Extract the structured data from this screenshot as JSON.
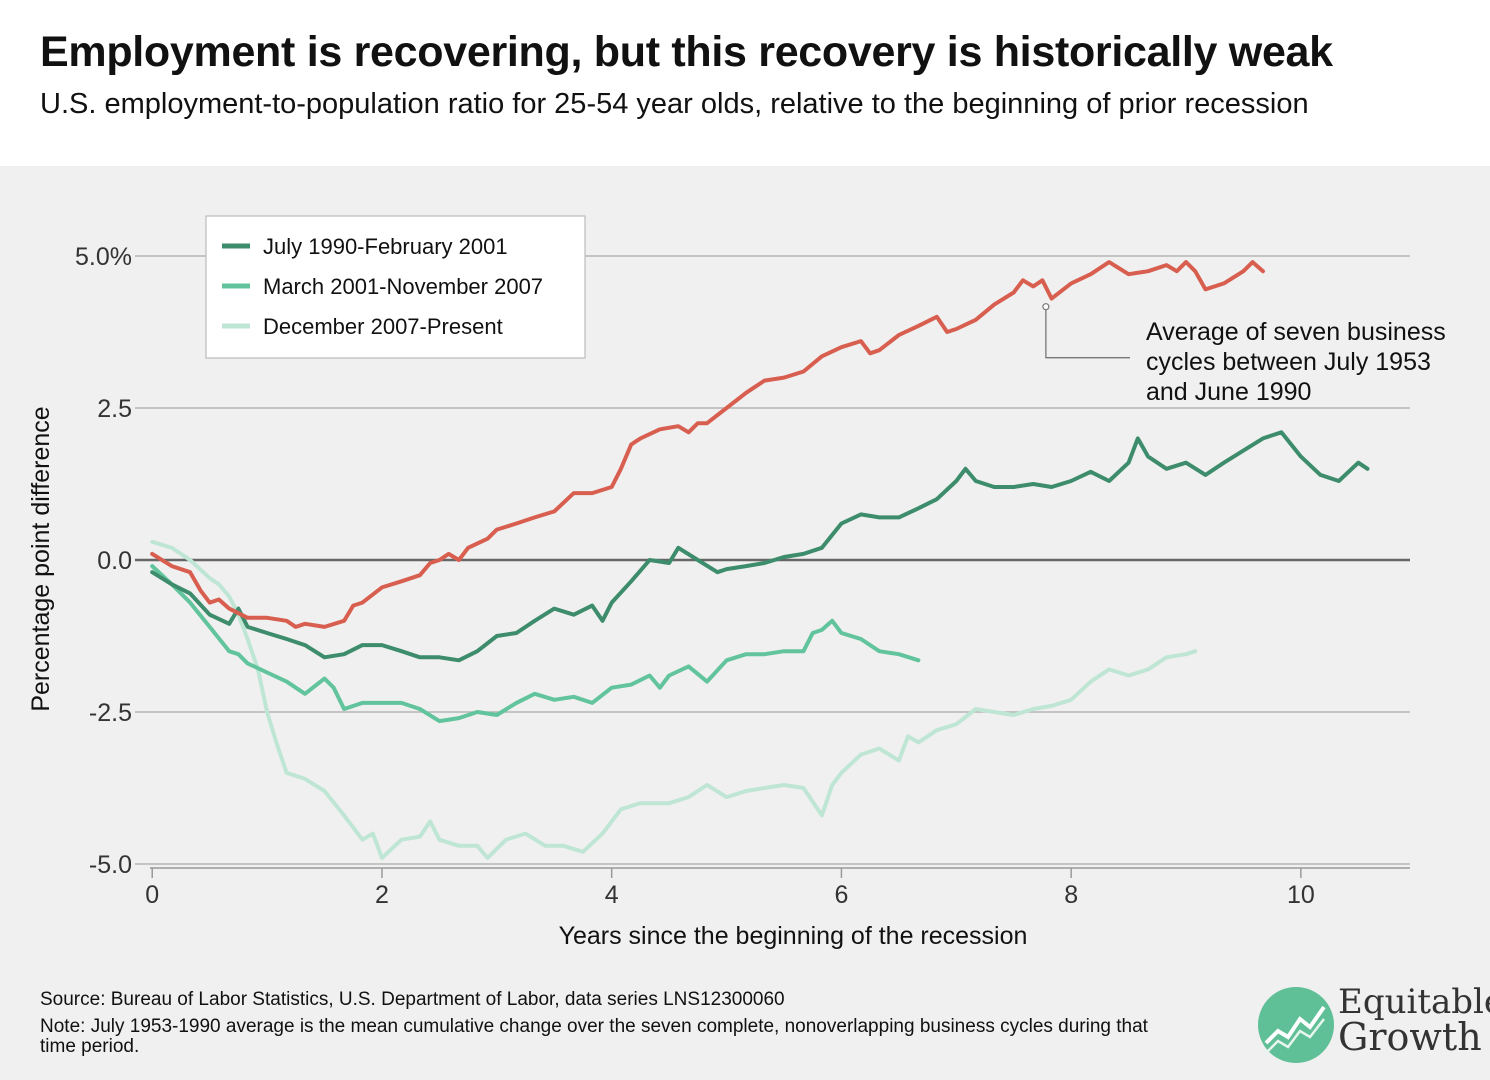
{
  "header": {
    "title": "Employment is recovering, but this recovery is historically weak",
    "subtitle": "U.S. employment-to-population ratio for 25-54 year olds, relative to the beginning of prior recession"
  },
  "footer": {
    "source": "Source: Bureau of Labor Statistics, U.S. Department of Labor, data series LNS12300060",
    "note": "Note: July 1953-1990 average is the mean cumulative change over the seven complete, nonoverlapping business cycles during that time period."
  },
  "logo": {
    "line1": "Equitable",
    "line2": "Growth",
    "icon": "growth-chart-icon"
  },
  "chart_data": {
    "type": "line",
    "title": "Employment is recovering, but this recovery is historically weak",
    "subtitle": "U.S. employment-to-population ratio for 25-54 year olds, relative to the beginning of prior recession",
    "xlabel": "Years since the beginning of the recession",
    "ylabel": "Percentage point difference",
    "xlim": [
      -0.15,
      10.95
    ],
    "ylim": [
      -5.0,
      5.0
    ],
    "xticks": [
      0,
      2,
      4,
      6,
      8,
      10
    ],
    "xtick_labels": [
      "0",
      "2",
      "4",
      "6",
      "8",
      "10"
    ],
    "yticks": [
      5,
      2.5,
      0,
      -2.5,
      -5
    ],
    "ytick_labels": [
      "5.0%",
      "2.5",
      "0.0",
      "-2.5",
      "-5.0"
    ],
    "grid": true,
    "legend_position": "top-left",
    "annotation": {
      "text": [
        "Average of seven business",
        "cycles between July 1953",
        "and June 1990"
      ],
      "point": [
        7.78,
        4.15
      ]
    },
    "series": [
      {
        "name": "July 1990-February 2001",
        "color": "#3d8c6c",
        "in_legend": true,
        "points": [
          [
            0,
            -0.2
          ],
          [
            0.17,
            -0.4
          ],
          [
            0.33,
            -0.55
          ],
          [
            0.5,
            -0.9
          ],
          [
            0.67,
            -1.05
          ],
          [
            0.75,
            -0.8
          ],
          [
            0.83,
            -1.1
          ],
          [
            1,
            -1.2
          ],
          [
            1.17,
            -1.3
          ],
          [
            1.33,
            -1.4
          ],
          [
            1.5,
            -1.6
          ],
          [
            1.67,
            -1.55
          ],
          [
            1.83,
            -1.4
          ],
          [
            2,
            -1.4
          ],
          [
            2.17,
            -1.5
          ],
          [
            2.33,
            -1.6
          ],
          [
            2.5,
            -1.6
          ],
          [
            2.67,
            -1.65
          ],
          [
            2.83,
            -1.5
          ],
          [
            3,
            -1.25
          ],
          [
            3.17,
            -1.2
          ],
          [
            3.33,
            -1.0
          ],
          [
            3.5,
            -0.8
          ],
          [
            3.67,
            -0.9
          ],
          [
            3.83,
            -0.75
          ],
          [
            3.92,
            -1.0
          ],
          [
            4,
            -0.7
          ],
          [
            4.17,
            -0.35
          ],
          [
            4.33,
            0.0
          ],
          [
            4.5,
            -0.05
          ],
          [
            4.58,
            0.2
          ],
          [
            4.75,
            0.0
          ],
          [
            4.92,
            -0.2
          ],
          [
            5,
            -0.15
          ],
          [
            5.17,
            -0.1
          ],
          [
            5.33,
            -0.05
          ],
          [
            5.5,
            0.05
          ],
          [
            5.67,
            0.1
          ],
          [
            5.83,
            0.2
          ],
          [
            6,
            0.6
          ],
          [
            6.17,
            0.75
          ],
          [
            6.33,
            0.7
          ],
          [
            6.5,
            0.7
          ],
          [
            6.67,
            0.85
          ],
          [
            6.83,
            1.0
          ],
          [
            7,
            1.3
          ],
          [
            7.08,
            1.5
          ],
          [
            7.17,
            1.3
          ],
          [
            7.33,
            1.2
          ],
          [
            7.5,
            1.2
          ],
          [
            7.67,
            1.25
          ],
          [
            7.83,
            1.2
          ],
          [
            8,
            1.3
          ],
          [
            8.17,
            1.45
          ],
          [
            8.33,
            1.3
          ],
          [
            8.5,
            1.6
          ],
          [
            8.58,
            2.0
          ],
          [
            8.67,
            1.7
          ],
          [
            8.83,
            1.5
          ],
          [
            9,
            1.6
          ],
          [
            9.17,
            1.4
          ],
          [
            9.33,
            1.6
          ],
          [
            9.5,
            1.8
          ],
          [
            9.67,
            2.0
          ],
          [
            9.83,
            2.1
          ],
          [
            10,
            1.7
          ],
          [
            10.17,
            1.4
          ],
          [
            10.33,
            1.3
          ],
          [
            10.5,
            1.6
          ],
          [
            10.58,
            1.5
          ]
        ]
      },
      {
        "name": "March 2001-November 2007",
        "color": "#62c49d",
        "in_legend": true,
        "points": [
          [
            0,
            -0.1
          ],
          [
            0.17,
            -0.4
          ],
          [
            0.33,
            -0.7
          ],
          [
            0.5,
            -1.1
          ],
          [
            0.67,
            -1.5
          ],
          [
            0.75,
            -1.55
          ],
          [
            0.83,
            -1.7
          ],
          [
            1,
            -1.85
          ],
          [
            1.17,
            -2.0
          ],
          [
            1.33,
            -2.2
          ],
          [
            1.5,
            -1.95
          ],
          [
            1.58,
            -2.1
          ],
          [
            1.67,
            -2.45
          ],
          [
            1.83,
            -2.35
          ],
          [
            2,
            -2.35
          ],
          [
            2.17,
            -2.35
          ],
          [
            2.33,
            -2.45
          ],
          [
            2.5,
            -2.65
          ],
          [
            2.67,
            -2.6
          ],
          [
            2.83,
            -2.5
          ],
          [
            3,
            -2.55
          ],
          [
            3.17,
            -2.35
          ],
          [
            3.33,
            -2.2
          ],
          [
            3.5,
            -2.3
          ],
          [
            3.67,
            -2.25
          ],
          [
            3.83,
            -2.35
          ],
          [
            4,
            -2.1
          ],
          [
            4.17,
            -2.05
          ],
          [
            4.33,
            -1.9
          ],
          [
            4.42,
            -2.1
          ],
          [
            4.5,
            -1.9
          ],
          [
            4.67,
            -1.75
          ],
          [
            4.83,
            -2.0
          ],
          [
            5,
            -1.65
          ],
          [
            5.17,
            -1.55
          ],
          [
            5.33,
            -1.55
          ],
          [
            5.5,
            -1.5
          ],
          [
            5.67,
            -1.5
          ],
          [
            5.75,
            -1.2
          ],
          [
            5.83,
            -1.15
          ],
          [
            5.92,
            -1.0
          ],
          [
            6,
            -1.2
          ],
          [
            6.17,
            -1.3
          ],
          [
            6.33,
            -1.5
          ],
          [
            6.5,
            -1.55
          ],
          [
            6.67,
            -1.65
          ]
        ]
      },
      {
        "name": "December 2007-Present",
        "color": "#bfe6d5",
        "in_legend": true,
        "points": [
          [
            0,
            0.3
          ],
          [
            0.17,
            0.2
          ],
          [
            0.33,
            0.0
          ],
          [
            0.5,
            -0.3
          ],
          [
            0.58,
            -0.4
          ],
          [
            0.67,
            -0.6
          ],
          [
            0.75,
            -0.9
          ],
          [
            0.83,
            -1.3
          ],
          [
            0.92,
            -1.8
          ],
          [
            1,
            -2.5
          ],
          [
            1.08,
            -3.0
          ],
          [
            1.17,
            -3.5
          ],
          [
            1.33,
            -3.6
          ],
          [
            1.5,
            -3.8
          ],
          [
            1.67,
            -4.2
          ],
          [
            1.83,
            -4.6
          ],
          [
            1.92,
            -4.5
          ],
          [
            2,
            -4.9
          ],
          [
            2.17,
            -4.6
          ],
          [
            2.33,
            -4.55
          ],
          [
            2.42,
            -4.3
          ],
          [
            2.5,
            -4.6
          ],
          [
            2.67,
            -4.7
          ],
          [
            2.83,
            -4.7
          ],
          [
            2.92,
            -4.9
          ],
          [
            3.08,
            -4.6
          ],
          [
            3.25,
            -4.5
          ],
          [
            3.42,
            -4.7
          ],
          [
            3.58,
            -4.7
          ],
          [
            3.75,
            -4.8
          ],
          [
            3.92,
            -4.5
          ],
          [
            4.08,
            -4.1
          ],
          [
            4.25,
            -4.0
          ],
          [
            4.5,
            -4.0
          ],
          [
            4.67,
            -3.9
          ],
          [
            4.83,
            -3.7
          ],
          [
            5,
            -3.9
          ],
          [
            5.17,
            -3.8
          ],
          [
            5.33,
            -3.75
          ],
          [
            5.5,
            -3.7
          ],
          [
            5.67,
            -3.75
          ],
          [
            5.83,
            -4.2
          ],
          [
            5.92,
            -3.7
          ],
          [
            6,
            -3.5
          ],
          [
            6.17,
            -3.2
          ],
          [
            6.33,
            -3.1
          ],
          [
            6.5,
            -3.3
          ],
          [
            6.58,
            -2.9
          ],
          [
            6.67,
            -3.0
          ],
          [
            6.83,
            -2.8
          ],
          [
            7,
            -2.7
          ],
          [
            7.17,
            -2.45
          ],
          [
            7.33,
            -2.5
          ],
          [
            7.5,
            -2.55
          ],
          [
            7.67,
            -2.45
          ],
          [
            7.83,
            -2.4
          ],
          [
            8,
            -2.3
          ],
          [
            8.17,
            -2.0
          ],
          [
            8.33,
            -1.8
          ],
          [
            8.5,
            -1.9
          ],
          [
            8.67,
            -1.8
          ],
          [
            8.83,
            -1.6
          ],
          [
            9,
            -1.55
          ],
          [
            9.08,
            -1.5
          ]
        ]
      },
      {
        "name": "Average of seven business cycles between July 1953 and June 1990",
        "color": "#d85f4f",
        "in_legend": false,
        "points": [
          [
            0,
            0.1
          ],
          [
            0.17,
            -0.1
          ],
          [
            0.33,
            -0.2
          ],
          [
            0.42,
            -0.5
          ],
          [
            0.5,
            -0.7
          ],
          [
            0.58,
            -0.65
          ],
          [
            0.67,
            -0.8
          ],
          [
            0.83,
            -0.95
          ],
          [
            1,
            -0.95
          ],
          [
            1.17,
            -1.0
          ],
          [
            1.25,
            -1.1
          ],
          [
            1.33,
            -1.05
          ],
          [
            1.5,
            -1.1
          ],
          [
            1.67,
            -1.0
          ],
          [
            1.75,
            -0.75
          ],
          [
            1.83,
            -0.7
          ],
          [
            2,
            -0.45
          ],
          [
            2.17,
            -0.35
          ],
          [
            2.33,
            -0.25
          ],
          [
            2.42,
            -0.05
          ],
          [
            2.5,
            0.0
          ],
          [
            2.58,
            0.1
          ],
          [
            2.67,
            0.0
          ],
          [
            2.75,
            0.2
          ],
          [
            2.92,
            0.35
          ],
          [
            3,
            0.5
          ],
          [
            3.17,
            0.6
          ],
          [
            3.33,
            0.7
          ],
          [
            3.5,
            0.8
          ],
          [
            3.67,
            1.1
          ],
          [
            3.83,
            1.1
          ],
          [
            4,
            1.2
          ],
          [
            4.08,
            1.5
          ],
          [
            4.17,
            1.9
          ],
          [
            4.25,
            2.0
          ],
          [
            4.42,
            2.15
          ],
          [
            4.58,
            2.2
          ],
          [
            4.67,
            2.1
          ],
          [
            4.75,
            2.25
          ],
          [
            4.83,
            2.25
          ],
          [
            5,
            2.5
          ],
          [
            5.17,
            2.75
          ],
          [
            5.33,
            2.95
          ],
          [
            5.5,
            3.0
          ],
          [
            5.67,
            3.1
          ],
          [
            5.83,
            3.35
          ],
          [
            6,
            3.5
          ],
          [
            6.17,
            3.6
          ],
          [
            6.25,
            3.4
          ],
          [
            6.33,
            3.45
          ],
          [
            6.5,
            3.7
          ],
          [
            6.67,
            3.85
          ],
          [
            6.83,
            4.0
          ],
          [
            6.92,
            3.75
          ],
          [
            7,
            3.8
          ],
          [
            7.17,
            3.95
          ],
          [
            7.33,
            4.2
          ],
          [
            7.5,
            4.4
          ],
          [
            7.58,
            4.6
          ],
          [
            7.67,
            4.5
          ],
          [
            7.75,
            4.6
          ],
          [
            7.83,
            4.3
          ],
          [
            8,
            4.55
          ],
          [
            8.17,
            4.7
          ],
          [
            8.33,
            4.9
          ],
          [
            8.5,
            4.7
          ],
          [
            8.67,
            4.75
          ],
          [
            8.83,
            4.85
          ],
          [
            8.92,
            4.75
          ],
          [
            9,
            4.9
          ],
          [
            9.08,
            4.75
          ],
          [
            9.17,
            4.45
          ],
          [
            9.33,
            4.55
          ],
          [
            9.5,
            4.75
          ],
          [
            9.58,
            4.9
          ],
          [
            9.67,
            4.75
          ]
        ]
      }
    ]
  }
}
